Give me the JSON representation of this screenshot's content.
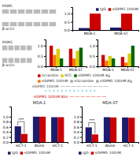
{
  "chart_data": [
    {
      "type": "blot",
      "annotations": [
        "PGM5",
        "β-actin"
      ]
    },
    {
      "type": "bar",
      "categories": [
        "MDA-1",
        "MDA-ST"
      ],
      "series": [
        {
          "name": "IgG",
          "color": "#1c1c6e",
          "values": [
            0.12,
            0.15
          ]
        },
        {
          "name": "siGPM5 100nM",
          "color": "#cc0000",
          "values": [
            1.0,
            1.0
          ]
        }
      ],
      "ylim": [
        0,
        1.4
      ],
      "yticks": [
        {
          "value": 0,
          "label": "0.0"
        },
        0.5,
        {
          "value": 1.0,
          "label": "1.0"
        }
      ],
      "legend": "upper right"
    },
    {
      "type": "blot",
      "annotations": [
        "PGM5",
        "β-actin"
      ]
    },
    {
      "type": "bar",
      "categories": [
        "MDA-1",
        "MDA-ST"
      ],
      "series": [
        {
          "color": "#cc0000",
          "values": [
            1.0,
            0.85
          ]
        },
        {
          "color": "#ff7700",
          "values": [
            0.55,
            0.38
          ]
        },
        {
          "color": "#ddcc00",
          "values": [
            0.85,
            0.75
          ]
        },
        {
          "color": "#006600",
          "values": [
            0.38,
            0.9
          ]
        }
      ],
      "ylim": [
        0,
        1.3
      ],
      "yticks": [
        {
          "value": 0,
          "label": "0.0"
        },
        0.5,
        {
          "value": 1.0,
          "label": "1.0"
        }
      ],
      "legend": "bottom",
      "legend_entries": [
        {
          "label": "Scramble",
          "color": "#cc0000"
        },
        {
          "label": "NTC",
          "color": "#ddcc00"
        },
        {
          "label": "siGPM5 100nM Ag",
          "color": "#006600"
        }
      ]
    },
    {
      "type": "bar",
      "categories": [
        "MDA-1",
        "MDA-ST"
      ],
      "series": [
        {
          "color": "#cc0000",
          "values": [
            0.55,
            0.45
          ]
        },
        {
          "color": "#ff7700",
          "values": [
            0.28,
            0.18
          ]
        },
        {
          "color": "#ddcc00",
          "values": [
            0.5,
            0.62
          ]
        },
        {
          "color": "#006600",
          "values": [
            0.38,
            1.0
          ]
        }
      ],
      "ylim": [
        0,
        1.3
      ],
      "yticks": [
        {
          "value": 0,
          "label": "0.0"
        },
        0.5,
        {
          "value": 1.0,
          "label": "1.0"
        }
      ],
      "legend": "bottom",
      "legend_entries": [
        {
          "label": "siGPM5 100nM",
          "color": "#ff7700"
        },
        {
          "label": "siScramble",
          "color": "#aaaaaa"
        },
        {
          "label": "siGPM5 100nM Ag",
          "color": "#aaaaaa"
        }
      ]
    },
    {
      "type": "text",
      "annotations": [
        {
          "text": "siGPM5 100nM: ── ── ── ── ── ── ── ── ──",
          "color": "#555555"
        },
        {
          "text": "↑ ↑ ↑ ↑ ↑ ↑ ↑ ↑ ↑ ↑ ↑ ↑ ↑",
          "color": "#00aacc"
        },
        {
          "text": "siGPM5 100nM Abs: ── ── ── ── ── ── ──",
          "color": "#cc0000"
        }
      ]
    },
    {
      "type": "bar",
      "title": "MDA-1",
      "categories": [
        "siCT-1",
        "Alone",
        "siCT-1"
      ],
      "series": [
        {
          "name": "IgG",
          "color": "#1c1c6e",
          "values": [
            0.62,
            1.0,
            0.98
          ]
        },
        {
          "name": "siGPM5 100nM",
          "color": "#cc0000",
          "values": [
            0.32,
            1.0,
            0.98
          ]
        }
      ],
      "ylim": [
        0,
        1.4
      ],
      "yticks": [
        {
          "value": 0.0,
          "label": "0.0"
        },
        0.2,
        0.4,
        0.6,
        0.8,
        {
          "value": 1.0,
          "label": "1.0"
        }
      ],
      "legend": "bottom",
      "annotations": [
        "***"
      ]
    },
    {
      "type": "bar",
      "title": "MDA-ST",
      "categories": [
        "siCT-1",
        "Alone",
        "siCT-1"
      ],
      "series": [
        {
          "name": "IgG",
          "color": "#1c1c6e",
          "values": [
            0.58,
            0.98,
            0.97
          ]
        },
        {
          "name": "siGPM5 100nM",
          "color": "#cc0000",
          "values": [
            0.3,
            0.97,
            0.96
          ]
        }
      ],
      "ylim": [
        0,
        1.4
      ],
      "yticks": [
        {
          "value": 0.0,
          "label": "0.0"
        },
        0.2,
        0.4,
        0.6,
        0.8,
        {
          "value": 1.0,
          "label": "1.0"
        }
      ],
      "legend": "bottom",
      "annotations": [
        "***"
      ]
    }
  ]
}
